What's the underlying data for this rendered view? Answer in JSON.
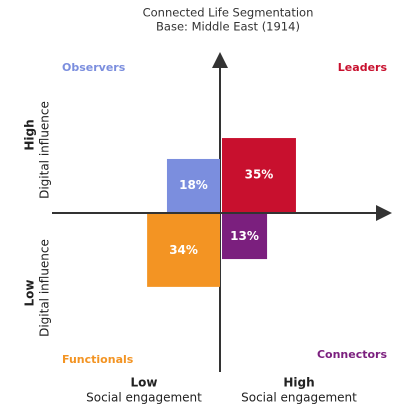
{
  "chart_data": {
    "type": "quadrant",
    "title": "Connected Life Segmentation",
    "subtitle": "Base: Middle East (1914)",
    "categories": [
      "Observers",
      "Leaders",
      "Functionals",
      "Connectors"
    ],
    "values": [
      18,
      35,
      34,
      13
    ],
    "value_labels": [
      "18%",
      "35%",
      "34%",
      "13%"
    ],
    "colors": [
      "#7b8ede",
      "#c8102e",
      "#f39423",
      "#7b1f7e"
    ],
    "x_axis": {
      "low": "Low",
      "high": "High",
      "label": "Social engagement"
    },
    "y_axis": {
      "low": "Low",
      "high": "High",
      "label": "Digital influence"
    }
  }
}
